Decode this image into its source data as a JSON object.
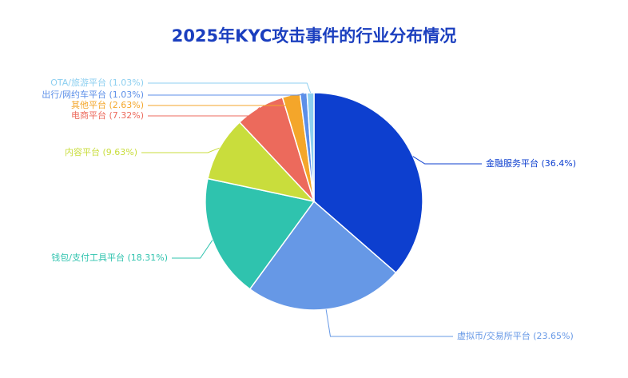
{
  "chart_data": {
    "type": "pie",
    "title": "2025年KYC攻击事件的行业分布情况",
    "categories": [
      "金融服务平台",
      "虚拟币/交易所平台",
      "钱包/支付工具平台",
      "内容平台",
      "电商平台",
      "其他平台",
      "出行/网约车平台",
      "OTA/旅游平台"
    ],
    "values": [
      36.4,
      23.65,
      18.31,
      9.63,
      7.32,
      2.63,
      1.03,
      1.03
    ],
    "value_labels": [
      "(36.4%)",
      "(23.65%)",
      "(18.31%)",
      "(9.63%)",
      "(7.32%)",
      "(2.63%)",
      "(1.03%)",
      "(1.03%)"
    ],
    "colors": [
      "#0d3fcf",
      "#6698e6",
      "#2fc3ae",
      "#c9dd3c",
      "#ec6a5c",
      "#f4a62a",
      "#5c8fe8",
      "#8ccff0"
    ]
  }
}
